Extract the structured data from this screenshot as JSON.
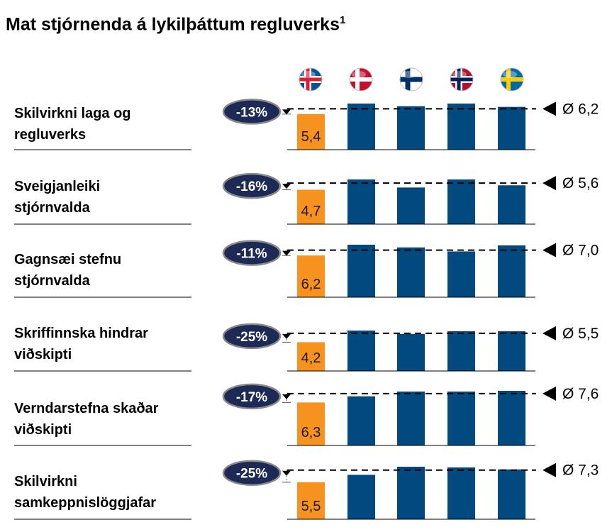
{
  "title": "Mat stjórnenda á lykilþáttum regluverks",
  "title_footnote": "1",
  "colors": {
    "iceland_bar": "#F7921E",
    "other_bar": "#004A7F",
    "badge_fill": "#1D2A55",
    "badge_border": "#8A8A8A"
  },
  "countries": [
    {
      "name": "Iceland",
      "flag": "flag-iceland-icon"
    },
    {
      "name": "Denmark",
      "flag": "flag-denmark-icon"
    },
    {
      "name": "Finland",
      "flag": "flag-finland-icon"
    },
    {
      "name": "Norway",
      "flag": "flag-norway-icon"
    },
    {
      "name": "Sweden",
      "flag": "flag-sweden-icon"
    }
  ],
  "chart_data": {
    "type": "bar",
    "categories": [
      "Iceland",
      "Denmark",
      "Finland",
      "Norway",
      "Sweden"
    ],
    "rows": [
      {
        "label": "Skilvirkni laga  og\nregluverks",
        "values": [
          5.4,
          7.0,
          6.6,
          7.0,
          6.5
        ],
        "iceland_label": "5,4",
        "diff": "-13%",
        "avg": 6.2,
        "avg_label": "Ø 6,2"
      },
      {
        "label": "Sveigjanleiki\nstjórnvalda",
        "values": [
          4.7,
          6.1,
          5.0,
          6.1,
          5.3
        ],
        "iceland_label": "4,7",
        "diff": "-16%",
        "avg": 5.6,
        "avg_label": "Ø 5,6"
      },
      {
        "label": "Gagnsæi stefnu\nstjórnvalda",
        "values": [
          6.2,
          7.8,
          7.4,
          6.8,
          7.7
        ],
        "iceland_label": "6,2",
        "diff": "-11%",
        "avg": 7.0,
        "avg_label": "Ø 7,0"
      },
      {
        "label": "Skriffinnska hindrar\nviðskipti",
        "values": [
          4.2,
          5.9,
          5.4,
          5.8,
          5.8
        ],
        "iceland_label": "4,2",
        "diff": "-25%",
        "avg": 5.5,
        "avg_label": "Ø 5,5"
      },
      {
        "label": "Verndarstefna skaðar\nviðskipti",
        "values": [
          6.3,
          7.2,
          7.9,
          7.9,
          8.0
        ],
        "iceland_label": "6,3",
        "diff": "-17%",
        "avg": 7.6,
        "avg_label": "Ø 7,6"
      },
      {
        "label": "Skilvirkni\nsamkeppnislöggjafar",
        "values": [
          5.5,
          6.6,
          7.8,
          7.7,
          7.4
        ],
        "iceland_label": "5,5",
        "diff": "-25%",
        "avg": 7.3,
        "avg_label": "Ø 7,3"
      }
    ]
  }
}
